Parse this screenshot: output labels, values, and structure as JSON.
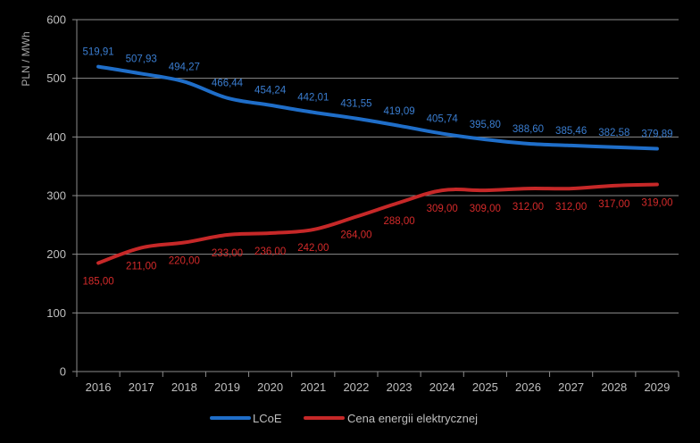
{
  "chart_data": {
    "type": "line",
    "title": "",
    "xlabel": "",
    "ylabel": "PLN / MWh",
    "ylim": [
      0,
      600
    ],
    "yticks": [
      0,
      100,
      200,
      300,
      400,
      500,
      600
    ],
    "grid": true,
    "legend_position": "bottom",
    "categories": [
      "2016",
      "2017",
      "2018",
      "2019",
      "2020",
      "2021",
      "2022",
      "2023",
      "2024",
      "2025",
      "2026",
      "2027",
      "2028",
      "2029"
    ],
    "series": [
      {
        "name": "LCoE",
        "color": "#1f6ec9",
        "label_color": "#3a7dd0",
        "values": [
          519.91,
          507.93,
          494.27,
          466.44,
          454.24,
          442.01,
          431.55,
          419.09,
          405.74,
          395.8,
          388.6,
          385.46,
          382.58,
          379.89
        ],
        "labels": [
          "519,91",
          "507,93",
          "494,27",
          "466,44",
          "454,24",
          "442,01",
          "431,55",
          "419,09",
          "405,74",
          "395,80",
          "388,60",
          "385,46",
          "382,58",
          "379,89"
        ]
      },
      {
        "name": "Cena energii elektrycznej",
        "color": "#c62828",
        "label_color": "#d42a2a",
        "values": [
          185.0,
          211.0,
          220.0,
          233.0,
          236.0,
          242.0,
          264.0,
          288.0,
          309.0,
          309.0,
          312.0,
          312.0,
          317.0,
          319.0
        ],
        "labels": [
          "185,00",
          "211,00",
          "220,00",
          "233,00",
          "236,00",
          "242,00",
          "264,00",
          "288,00",
          "309,00",
          "309,00",
          "312,00",
          "312,00",
          "317,00",
          "319,00"
        ]
      }
    ]
  }
}
